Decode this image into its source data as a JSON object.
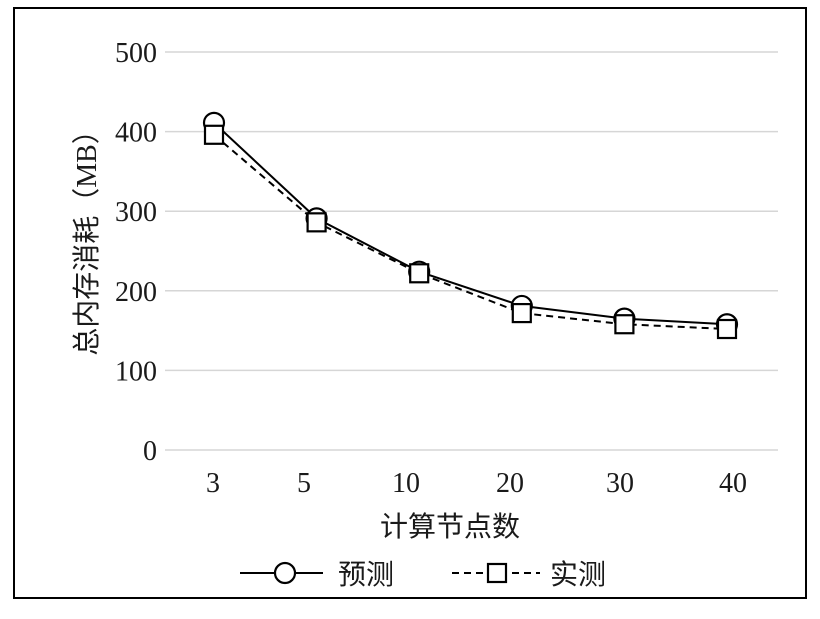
{
  "chart_data": {
    "type": "line",
    "categories": [
      "3",
      "5",
      "10",
      "20",
      "30",
      "40"
    ],
    "series": [
      {
        "name": "预测",
        "values": [
          411,
          291,
          224,
          181,
          165,
          158
        ],
        "marker": "circle",
        "line_style": "solid",
        "color": "#000000"
      },
      {
        "name": "实测",
        "values": [
          396,
          286,
          222,
          172,
          158,
          152
        ],
        "marker": "square",
        "line_style": "dashed",
        "color": "#000000"
      }
    ],
    "xlabel": "计算节点数",
    "ylabel": "总内存消耗（MB）",
    "ylim": [
      0,
      500
    ],
    "yticks": [
      0,
      100,
      200,
      300,
      400,
      500
    ],
    "grid": true,
    "grid_color": "#d6d6d6",
    "legend": "bottom"
  }
}
